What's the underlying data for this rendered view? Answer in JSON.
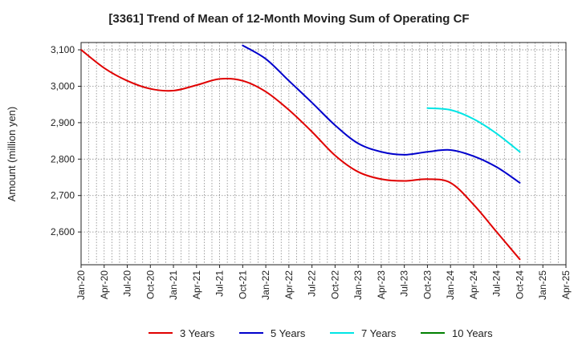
{
  "chart_data": {
    "type": "line",
    "title": "[3361]  Trend of Mean of 12-Month Moving Sum of Operating CF",
    "xlabel": "",
    "ylabel": "Amount (million yen)",
    "x_tick_labels": [
      "Jan-20",
      "Apr-20",
      "Jul-20",
      "Oct-20",
      "Jan-21",
      "Apr-21",
      "Jul-21",
      "Oct-21",
      "Jan-22",
      "Apr-22",
      "Jul-22",
      "Oct-22",
      "Jan-23",
      "Apr-23",
      "Jul-23",
      "Oct-23",
      "Jan-24",
      "Apr-24",
      "Jul-24",
      "Oct-24",
      "Jan-25",
      "Apr-25"
    ],
    "y_ticks": [
      2600,
      2700,
      2800,
      2900,
      3000,
      3100
    ],
    "y_tick_labels": [
      "2,600",
      "2,700",
      "2,800",
      "2,900",
      "3,000",
      "3,100"
    ],
    "ylim": [
      2510,
      3120
    ],
    "x_minor_per_major": 3,
    "grid": true,
    "legend_position": "bottom",
    "series": [
      {
        "name": "3 Years",
        "color": "#e00000",
        "points": [
          [
            "Jan-20",
            3100
          ],
          [
            "Apr-20",
            3050
          ],
          [
            "Jul-20",
            3015
          ],
          [
            "Oct-20",
            2993
          ],
          [
            "Jan-21",
            2988
          ],
          [
            "Apr-21",
            3003
          ],
          [
            "Jul-21",
            3020
          ],
          [
            "Oct-21",
            3015
          ],
          [
            "Jan-22",
            2985
          ],
          [
            "Apr-22",
            2935
          ],
          [
            "Jul-22",
            2875
          ],
          [
            "Oct-22",
            2810
          ],
          [
            "Jan-23",
            2765
          ],
          [
            "Apr-23",
            2745
          ],
          [
            "Jul-23",
            2740
          ],
          [
            "Oct-23",
            2745
          ],
          [
            "Jan-24",
            2735
          ],
          [
            "Apr-24",
            2675
          ],
          [
            "Jul-24",
            2600
          ],
          [
            "Oct-24",
            2525
          ]
        ]
      },
      {
        "name": "5 Years",
        "color": "#0000cc",
        "points": [
          [
            "Oct-21",
            3112
          ],
          [
            "Jan-22",
            3075
          ],
          [
            "Apr-22",
            3015
          ],
          [
            "Jul-22",
            2955
          ],
          [
            "Oct-22",
            2893
          ],
          [
            "Jan-23",
            2843
          ],
          [
            "Apr-23",
            2820
          ],
          [
            "Jul-23",
            2812
          ],
          [
            "Oct-23",
            2820
          ],
          [
            "Jan-24",
            2825
          ],
          [
            "Apr-24",
            2808
          ],
          [
            "Jul-24",
            2778
          ],
          [
            "Oct-24",
            2735
          ]
        ]
      },
      {
        "name": "7 Years",
        "color": "#00e5e5",
        "points": [
          [
            "Oct-23",
            2940
          ],
          [
            "Jan-24",
            2935
          ],
          [
            "Apr-24",
            2910
          ],
          [
            "Jul-24",
            2870
          ],
          [
            "Oct-24",
            2820
          ]
        ]
      },
      {
        "name": "10 Years",
        "color": "#008000",
        "points": []
      }
    ]
  }
}
